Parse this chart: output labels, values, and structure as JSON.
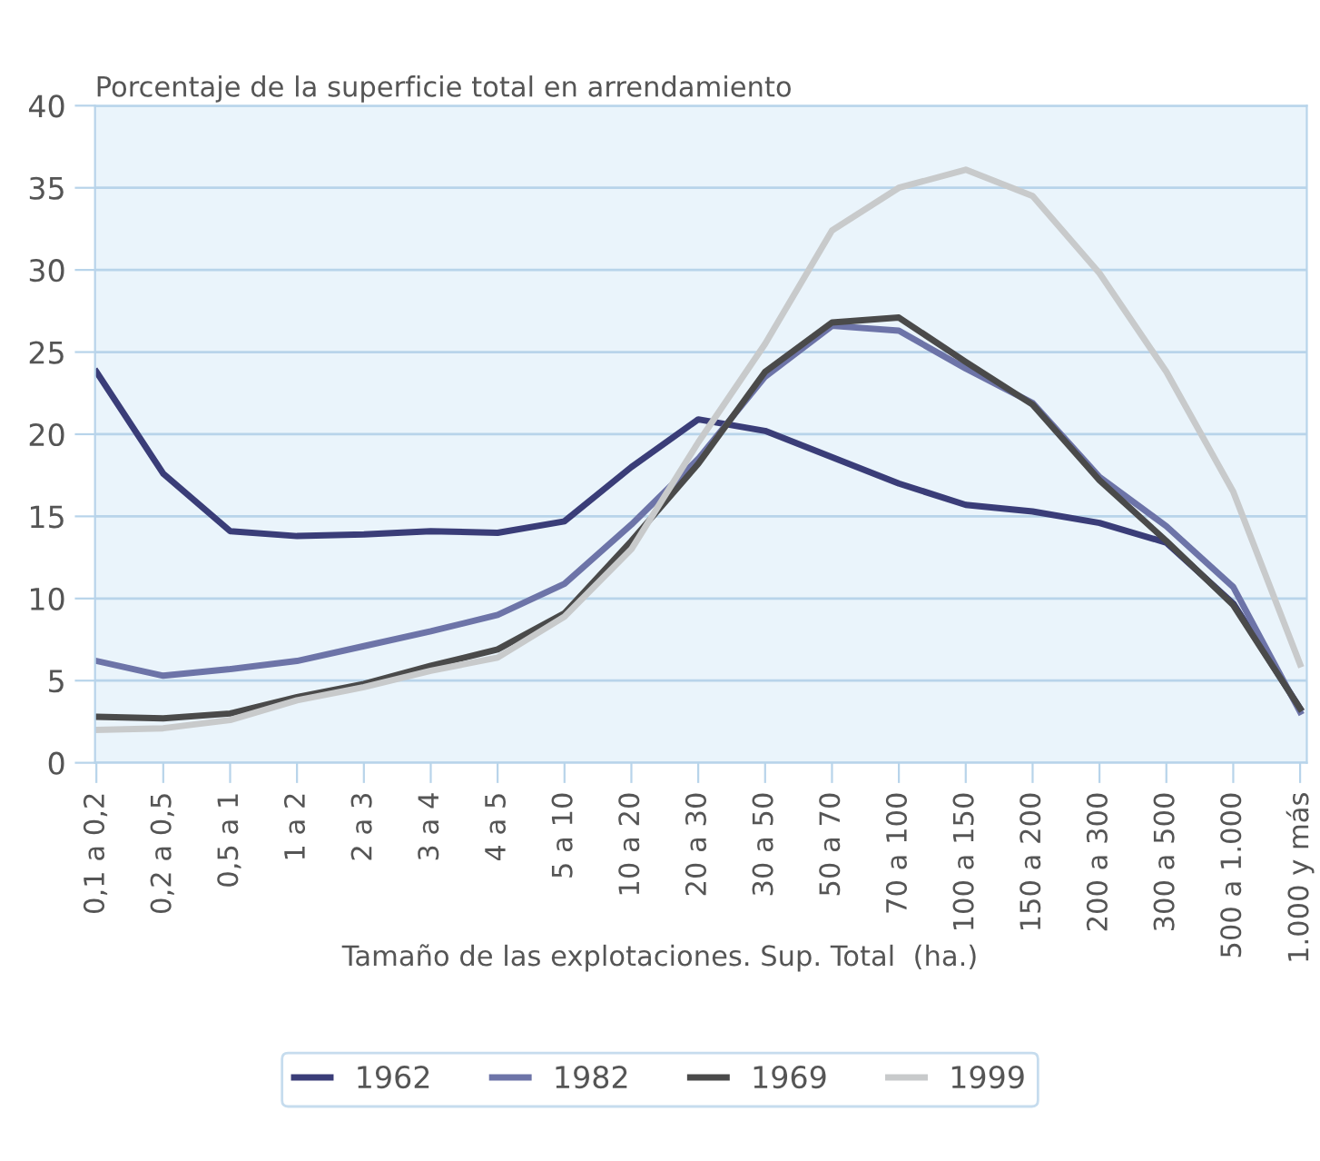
{
  "chart_data": {
    "type": "line",
    "ylabel": "Porcentaje de la superficie total en arrendamiento",
    "xlabel": "Tamaño de las explotaciones. Sup. Total  (ha.)",
    "categories": [
      "0,1 a 0,2",
      "0,2 a 0,5",
      "0,5 a 1",
      "1 a 2",
      "2 a 3",
      "3 a 4",
      "4 a 5",
      "5 a 10",
      "10 a 20",
      "20 a 30",
      "30 a 50",
      "50 a 70",
      "70 a 100",
      "100 a 150",
      "150 a 200",
      "200 a 300",
      "300 a 500",
      "500 a 1.000",
      "1.000 y más"
    ],
    "series": [
      {
        "name": "1962",
        "color": "#3a3d78",
        "values": [
          23.8,
          17.6,
          14.1,
          13.8,
          13.9,
          14.1,
          14.0,
          14.7,
          18.0,
          20.9,
          20.2,
          18.6,
          17.0,
          15.7,
          15.3,
          14.6,
          13.4,
          9.7,
          3.3
        ]
      },
      {
        "name": "1982",
        "color": "#6d74a8",
        "values": [
          6.2,
          5.3,
          5.7,
          6.2,
          7.1,
          8.0,
          9.0,
          10.9,
          14.5,
          18.5,
          23.5,
          26.6,
          26.3,
          24.0,
          21.9,
          17.4,
          14.4,
          10.7,
          3.1
        ]
      },
      {
        "name": "1969",
        "color": "#4a4a4a",
        "values": [
          2.8,
          2.7,
          3.0,
          4.0,
          4.8,
          5.9,
          6.9,
          9.1,
          13.5,
          18.2,
          23.8,
          26.8,
          27.1,
          24.4,
          21.8,
          17.2,
          13.5,
          9.6,
          3.3
        ]
      },
      {
        "name": "1999",
        "color": "#c8cacb",
        "values": [
          2.0,
          2.1,
          2.6,
          3.8,
          4.6,
          5.6,
          6.4,
          8.9,
          13.0,
          19.5,
          25.5,
          32.4,
          35.0,
          36.1,
          34.5,
          29.8,
          23.8,
          16.5,
          6.0
        ]
      }
    ],
    "ylim": [
      0,
      40
    ],
    "yticks": [
      0,
      5,
      10,
      15,
      20,
      25,
      30,
      35,
      40
    ],
    "grid": "y",
    "legend": "bottom",
    "marker": "none",
    "line_style": "solid"
  }
}
